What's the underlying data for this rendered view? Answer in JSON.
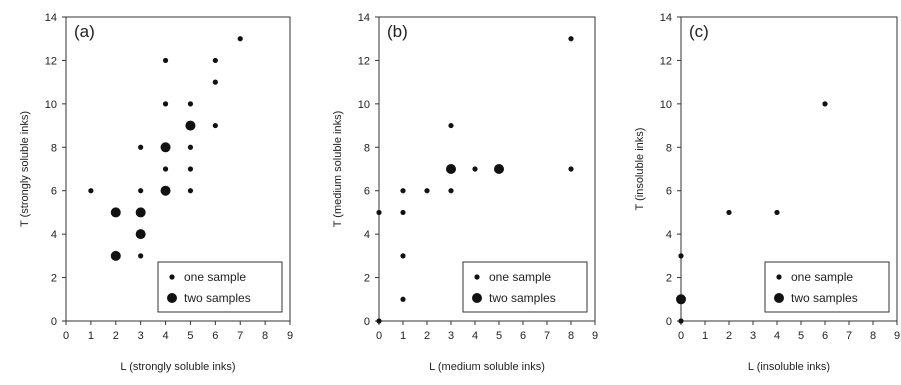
{
  "chart_data": [
    {
      "type": "scatter",
      "panel_label": "(a)",
      "xlabel": "L (strongly soluble inks)",
      "ylabel": "T (strongly soluble inks)",
      "xlim": [
        0,
        9
      ],
      "ylim": [
        0,
        14
      ],
      "xticks": [
        "0",
        "1",
        "2",
        "3",
        "4",
        "5",
        "6",
        "7",
        "8",
        "9"
      ],
      "yticks": [
        "0",
        "2",
        "4",
        "6",
        "8",
        "10",
        "12",
        "14"
      ],
      "legend": {
        "position": "bottom-right",
        "entries": [
          "one sample",
          "two samples"
        ]
      },
      "points": [
        {
          "x": 1,
          "y": 6,
          "n": 1
        },
        {
          "x": 2,
          "y": 3,
          "n": 2
        },
        {
          "x": 2,
          "y": 5,
          "n": 2
        },
        {
          "x": 3,
          "y": 3,
          "n": 1
        },
        {
          "x": 3,
          "y": 4,
          "n": 2
        },
        {
          "x": 3,
          "y": 5,
          "n": 2
        },
        {
          "x": 3,
          "y": 6,
          "n": 1
        },
        {
          "x": 3,
          "y": 8,
          "n": 1
        },
        {
          "x": 4,
          "y": 6,
          "n": 2
        },
        {
          "x": 4,
          "y": 7,
          "n": 1
        },
        {
          "x": 4,
          "y": 8,
          "n": 2
        },
        {
          "x": 4,
          "y": 10,
          "n": 1
        },
        {
          "x": 4,
          "y": 12,
          "n": 1
        },
        {
          "x": 5,
          "y": 6,
          "n": 1
        },
        {
          "x": 5,
          "y": 7,
          "n": 1
        },
        {
          "x": 5,
          "y": 8,
          "n": 1
        },
        {
          "x": 5,
          "y": 9,
          "n": 2
        },
        {
          "x": 5,
          "y": 10,
          "n": 1
        },
        {
          "x": 6,
          "y": 9,
          "n": 1
        },
        {
          "x": 6,
          "y": 11,
          "n": 1
        },
        {
          "x": 6,
          "y": 12,
          "n": 1
        },
        {
          "x": 7,
          "y": 13,
          "n": 1
        }
      ]
    },
    {
      "type": "scatter",
      "panel_label": "(b)",
      "xlabel": "L (medium soluble inks)",
      "ylabel": "T (medium soluble inks)",
      "xlim": [
        0,
        9
      ],
      "ylim": [
        0,
        14
      ],
      "xticks": [
        "0",
        "1",
        "2",
        "3",
        "4",
        "5",
        "6",
        "7",
        "8",
        "9"
      ],
      "yticks": [
        "0",
        "2",
        "4",
        "6",
        "8",
        "10",
        "12",
        "14"
      ],
      "legend": {
        "position": "bottom-right",
        "entries": [
          "one sample",
          "two samples"
        ]
      },
      "points": [
        {
          "x": 0,
          "y": 0,
          "n": 1
        },
        {
          "x": 0,
          "y": 5,
          "n": 1
        },
        {
          "x": 1,
          "y": 1,
          "n": 1
        },
        {
          "x": 1,
          "y": 3,
          "n": 1
        },
        {
          "x": 1,
          "y": 5,
          "n": 1
        },
        {
          "x": 1,
          "y": 6,
          "n": 1
        },
        {
          "x": 2,
          "y": 6,
          "n": 1
        },
        {
          "x": 3,
          "y": 6,
          "n": 1
        },
        {
          "x": 3,
          "y": 7,
          "n": 2
        },
        {
          "x": 3,
          "y": 9,
          "n": 1
        },
        {
          "x": 4,
          "y": 7,
          "n": 1
        },
        {
          "x": 5,
          "y": 7,
          "n": 2
        },
        {
          "x": 8,
          "y": 7,
          "n": 1
        },
        {
          "x": 8,
          "y": 13,
          "n": 1
        }
      ]
    },
    {
      "type": "scatter",
      "panel_label": "(c)",
      "xlabel": "L (insoluble inks)",
      "ylabel": "T (insoluble inks)",
      "xlim": [
        0,
        9
      ],
      "ylim": [
        0,
        14
      ],
      "xticks": [
        "0",
        "1",
        "2",
        "3",
        "4",
        "5",
        "6",
        "7",
        "8",
        "9"
      ],
      "yticks": [
        "0",
        "2",
        "4",
        "6",
        "8",
        "10",
        "12",
        "14"
      ],
      "legend": {
        "position": "bottom-right",
        "entries": [
          "one sample",
          "two samples"
        ]
      },
      "points": [
        {
          "x": 0,
          "y": 0,
          "n": 1
        },
        {
          "x": 0,
          "y": 1,
          "n": 2
        },
        {
          "x": 0,
          "y": 3,
          "n": 1
        },
        {
          "x": 2,
          "y": 5,
          "n": 1
        },
        {
          "x": 4,
          "y": 5,
          "n": 1
        },
        {
          "x": 6,
          "y": 10,
          "n": 1
        }
      ]
    }
  ],
  "colors": {
    "marker": "#111111",
    "axis": "#333333"
  }
}
